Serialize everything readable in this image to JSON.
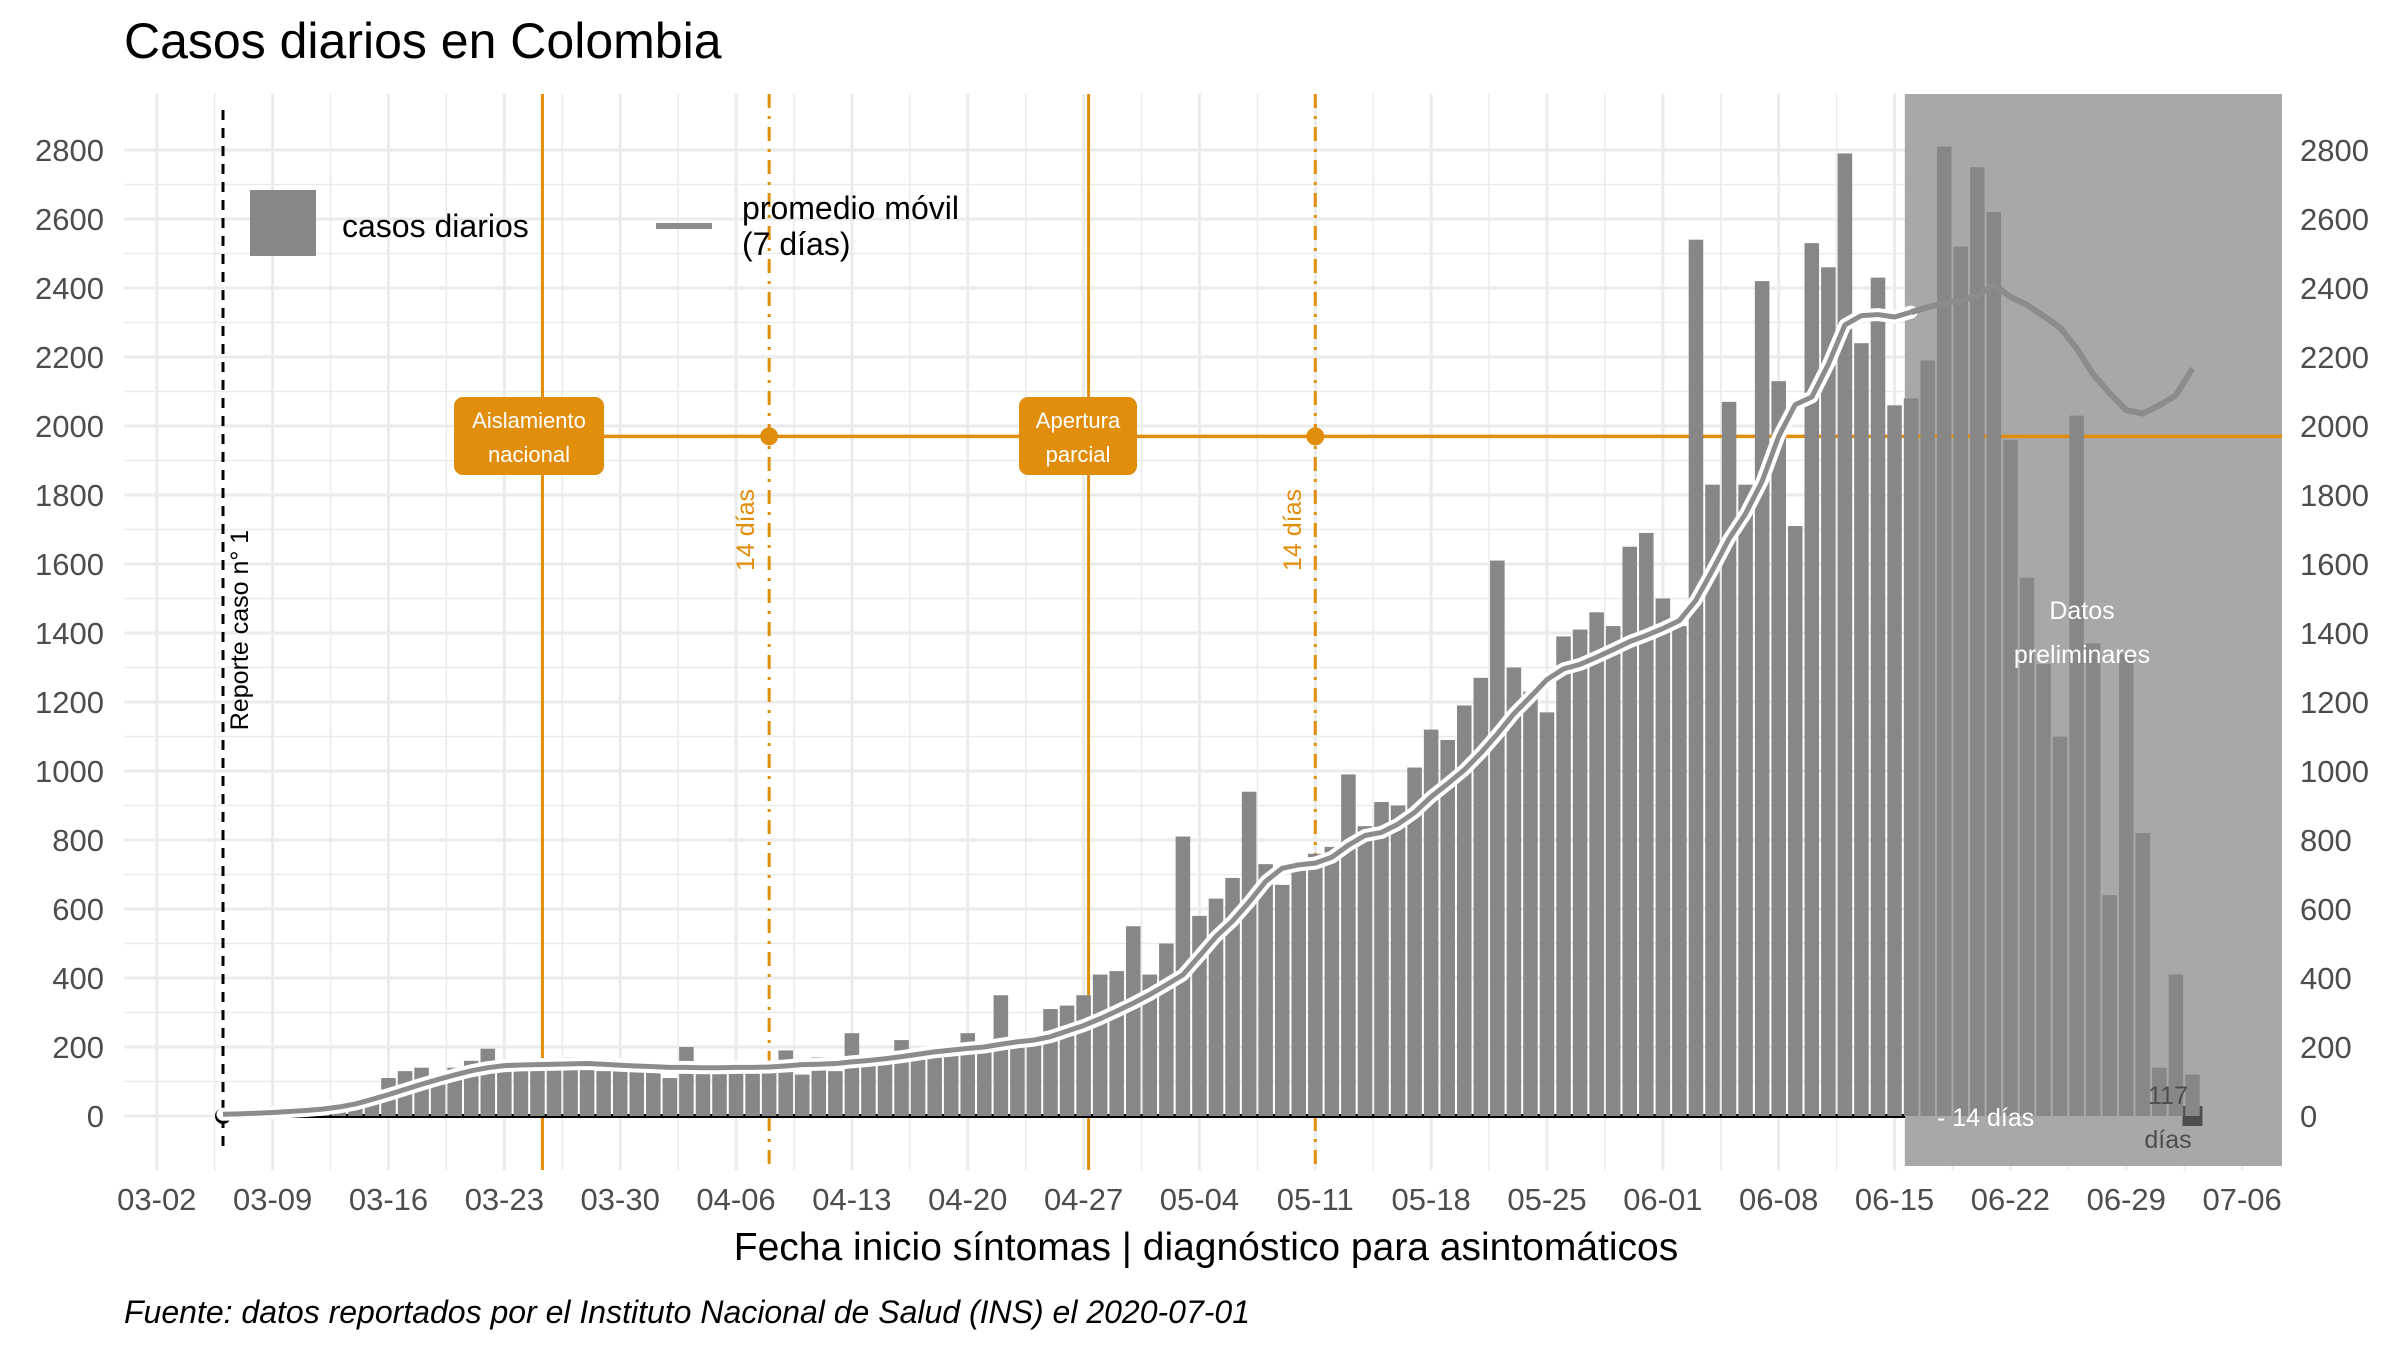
{
  "title": "Casos diarios en Colombia",
  "xlabel": "Fecha inicio síntomas | diagnóstico para asintomáticos",
  "caption": "Fuente: datos reportados por el Instituto Nacional de Salud (INS) el 2020-07-01",
  "legend": {
    "bars": "casos diarios",
    "line_line1": "promedio móvil",
    "line_line2": "(7 días)"
  },
  "annotations": {
    "first_case": "Reporte caso n° 1",
    "lockdown_line1": "Aislamiento",
    "lockdown_line2": "nacional",
    "reopening_line1": "Apertura",
    "reopening_line2": "parcial",
    "days14_a": "14 días",
    "days14_b": "14 días",
    "preliminary_line1": "Datos",
    "preliminary_line2": "preliminares",
    "minus14": "- 14 días",
    "n117_line1": "117",
    "n117_line2": "días"
  },
  "colors": {
    "bars": "#878787",
    "moving_average": "#8c8c8c",
    "accent": "#e08e0b",
    "preliminary_band": "#a8a8a8",
    "grid": "#ebebeb"
  },
  "chart_data": {
    "type": "bar",
    "x_start": "2020-03-06",
    "x_tick_labels": [
      "03-02",
      "03-09",
      "03-16",
      "03-23",
      "03-30",
      "04-06",
      "04-13",
      "04-20",
      "04-27",
      "05-04",
      "05-11",
      "05-18",
      "05-25",
      "06-01",
      "06-08",
      "06-15",
      "06-22",
      "06-29",
      "07-06"
    ],
    "y_ticks": [
      0,
      200,
      400,
      600,
      800,
      1000,
      1200,
      1400,
      1600,
      1800,
      2000,
      2200,
      2400,
      2600,
      2800
    ],
    "ylim": [
      -150,
      2950
    ],
    "values": [
      1,
      1,
      2,
      3,
      2,
      5,
      4,
      15,
      30,
      60,
      110,
      130,
      140,
      100,
      140,
      160,
      195,
      150,
      150,
      150,
      160,
      170,
      150,
      130,
      160,
      140,
      130,
      110,
      200,
      130,
      130,
      130,
      130,
      150,
      190,
      120,
      170,
      130,
      240,
      150,
      150,
      220,
      190,
      200,
      190,
      240,
      200,
      350,
      230,
      230,
      310,
      320,
      350,
      410,
      420,
      550,
      410,
      500,
      810,
      580,
      630,
      690,
      940,
      730,
      670,
      720,
      760,
      780,
      990,
      840,
      910,
      900,
      1010,
      1120,
      1090,
      1190,
      1270,
      1610,
      1300,
      1230,
      1170,
      1390,
      1410,
      1460,
      1420,
      1650,
      1690,
      1500,
      1420,
      2540,
      1830,
      2070,
      1830,
      2420,
      2130,
      1710,
      2530,
      2460,
      2790,
      2240,
      2430,
      2060,
      2080,
      2190,
      2810,
      2520,
      2750,
      2620,
      1960,
      1560,
      1310,
      1100,
      2030,
      1370,
      640,
      1340,
      820,
      140,
      410,
      120
    ],
    "moving_average": [
      5,
      6,
      8,
      10,
      13,
      16,
      20,
      26,
      35,
      48,
      62,
      77,
      92,
      106,
      119,
      131,
      140,
      146,
      148,
      149,
      150,
      151,
      152,
      150,
      147,
      145,
      143,
      141,
      141,
      140,
      140,
      141,
      141,
      142,
      145,
      149,
      150,
      152,
      157,
      161,
      166,
      172,
      179,
      186,
      191,
      196,
      200,
      208,
      215,
      220,
      230,
      246,
      262,
      282,
      304,
      327,
      352,
      380,
      409,
      464,
      520,
      565,
      620,
      680,
      718,
      728,
      733,
      750,
      785,
      813,
      822,
      846,
      880,
      925,
      963,
      1003,
      1052,
      1107,
      1166,
      1215,
      1265,
      1296,
      1309,
      1330,
      1352,
      1375,
      1393,
      1413,
      1436,
      1495,
      1582,
      1673,
      1746,
      1840,
      1970,
      2062,
      2084,
      2179,
      2293,
      2320,
      2323,
      2316,
      2330,
      2344,
      2356,
      2364,
      2377,
      2410,
      2374,
      2351,
      2319,
      2285,
      2225,
      2150,
      2095,
      2046,
      2036,
      2060,
      2089,
      2167
    ],
    "preliminary_start_index": 102,
    "reference_date_index_first_case": 0,
    "lockdown_index": 19,
    "lockdown_plus14_index": 33,
    "reopening_index": 52,
    "reopening_plus14_index": 66,
    "reference_level": 1970,
    "grid": true,
    "legend_position": "top-left",
    "series": [
      {
        "name": "casos diarios",
        "style": "bar"
      },
      {
        "name": "promedio móvil (7 días)",
        "style": "line"
      }
    ]
  }
}
